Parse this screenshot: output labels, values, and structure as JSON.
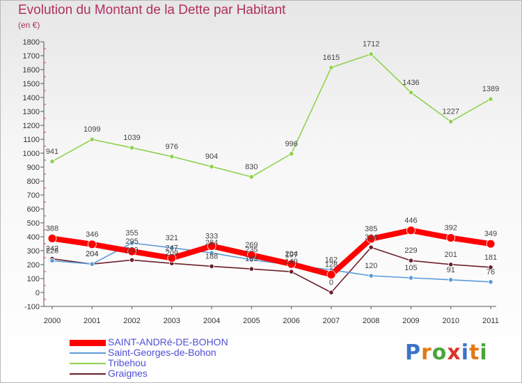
{
  "header": {
    "title": "Evolution du Montant de la Dette par Habitant",
    "unit": "(en €)"
  },
  "brand": {
    "name": "Proxiti"
  },
  "chart_data": {
    "type": "line",
    "title": "Evolution du Montant de la Dette par Habitant",
    "subtitle": "(en €)",
    "x": [
      2000,
      2001,
      2002,
      2003,
      2004,
      2005,
      2006,
      2007,
      2008,
      2009,
      2010,
      2011
    ],
    "ylim": [
      -100,
      1800
    ],
    "yticks": [
      -100,
      0,
      100,
      200,
      300,
      400,
      500,
      600,
      700,
      800,
      900,
      1000,
      1100,
      1200,
      1300,
      1400,
      1500,
      1600,
      1700,
      1800
    ],
    "grid": false,
    "legend_position": "bottom-left",
    "series": [
      {
        "name": "SAINT-ANDRé-DE-BOHON",
        "color": "#ff0000",
        "values": [
          388,
          346,
          295,
          247,
          333,
          269,
          204,
          128,
          385,
          446,
          392,
          349
        ],
        "labels": [
          "388",
          "346",
          "295",
          "247",
          "333",
          "269",
          "204",
          "128",
          "385",
          "446",
          "392",
          "349"
        ]
      },
      {
        "name": "Saint-Georges-de-Bohon",
        "color": "#5a9bd8",
        "values": [
          228,
          204,
          355,
          321,
          284,
          235,
          197,
          162,
          120,
          105,
          91,
          76
        ],
        "labels": [
          "228",
          "204",
          "355",
          "321",
          "284",
          "235",
          "197",
          "162",
          "120",
          "105",
          "91",
          "76"
        ]
      },
      {
        "name": "Tribehou",
        "color": "#8ed24e",
        "values": [
          941,
          1099,
          1039,
          976,
          904,
          830,
          996,
          1615,
          1712,
          1436,
          1227,
          1389
        ],
        "labels": [
          "941",
          "1099",
          "1039",
          "976",
          "904",
          "830",
          "996",
          "1615",
          "1712",
          "1436",
          "1227",
          "1389"
        ]
      },
      {
        "name": "Graignes",
        "color": "#6b1f2a",
        "values": [
          242,
          204,
          233,
          209,
          188,
          169,
          149,
          0,
          324,
          229,
          201,
          181
        ],
        "labels": [
          "242",
          "204",
          "233",
          "209",
          "188",
          "169",
          "149",
          "0",
          "324",
          "229",
          "201",
          "181"
        ]
      }
    ]
  }
}
